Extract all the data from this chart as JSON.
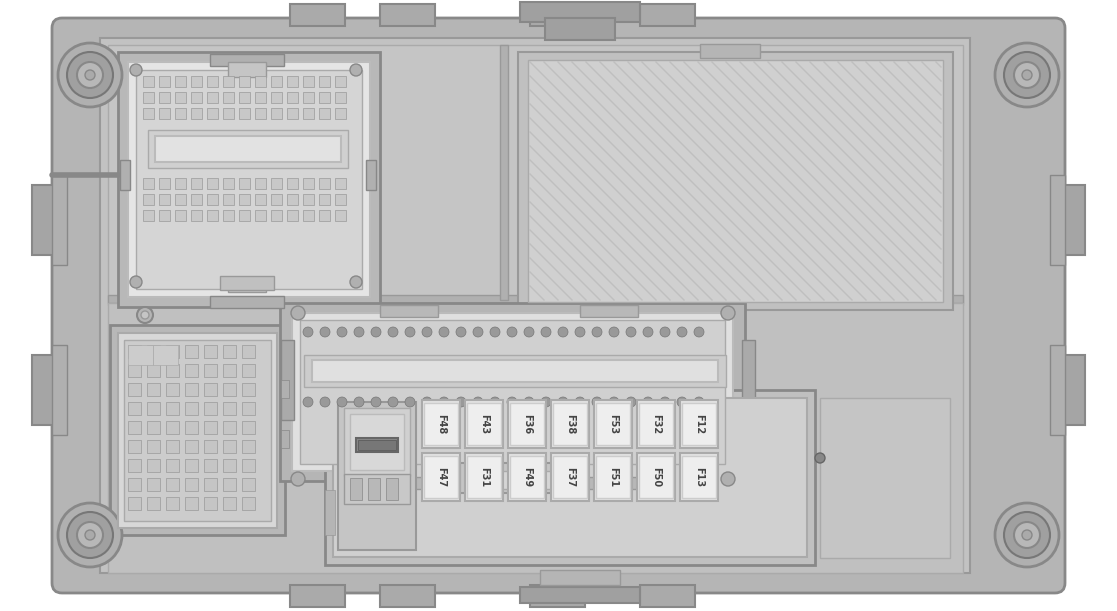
{
  "bg": "#ffffff",
  "fuse_labels_top": [
    "F48",
    "F43",
    "F36",
    "F38",
    "F53",
    "F32",
    "F12"
  ],
  "fuse_labels_bot": [
    "F47",
    "F31",
    "F49",
    "F37",
    "F51",
    "F50",
    "F13"
  ],
  "c0": "#c8c8c8",
  "c1": "#b8b8b8",
  "c2": "#a8a8a8",
  "c3": "#989898",
  "c4": "#d8d8d8",
  "c5": "#e8e8e8",
  "c6": "#f0f0f0",
  "c7": "#888888",
  "c8": "#777777",
  "c9": "#666666",
  "c10": "#555555"
}
